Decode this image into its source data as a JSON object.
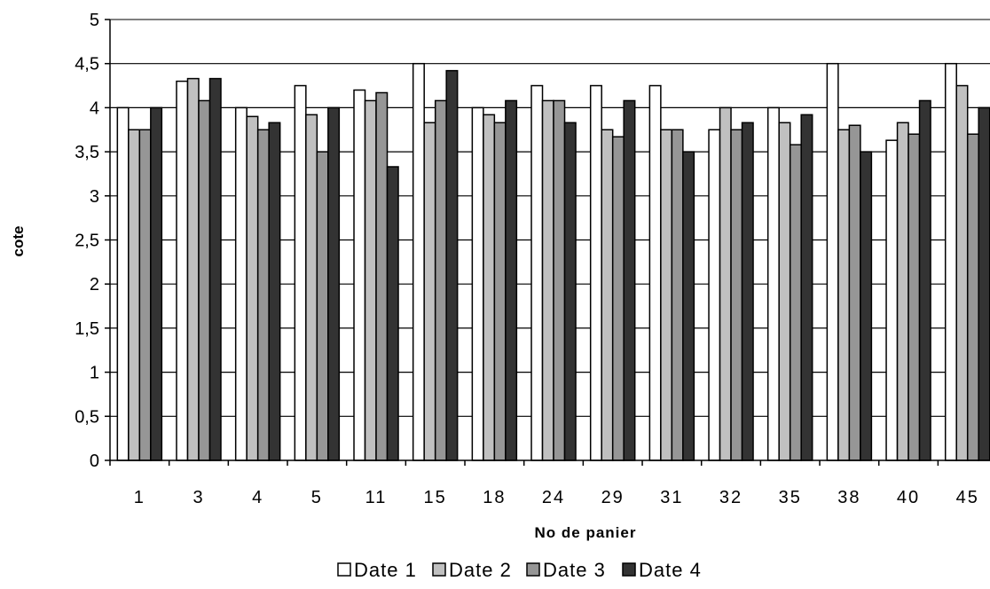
{
  "chart_data": {
    "type": "bar",
    "title": "",
    "xlabel": "No de panier",
    "ylabel": "cote",
    "ylim": [
      0,
      5
    ],
    "yticks": [
      "0",
      "0,5",
      "1",
      "1,5",
      "2",
      "2,5",
      "3",
      "3,5",
      "4",
      "4,5",
      "5"
    ],
    "grid": true,
    "legend_position": "bottom",
    "categories": [
      "1",
      "3",
      "4",
      "5",
      "11",
      "15",
      "18",
      "24",
      "29",
      "31",
      "32",
      "35",
      "38",
      "40",
      "45"
    ],
    "series": [
      {
        "name": "Date 1",
        "color": "#ffffff",
        "values": [
          4.0,
          4.3,
          4.0,
          4.25,
          4.2,
          4.5,
          4.0,
          4.25,
          4.25,
          4.25,
          3.75,
          4.0,
          4.5,
          3.63,
          4.5
        ]
      },
      {
        "name": "Date 2",
        "color": "#c0c0c0",
        "values": [
          3.75,
          4.33,
          3.9,
          3.92,
          4.08,
          3.83,
          3.92,
          4.08,
          3.75,
          3.75,
          4.0,
          3.83,
          3.75,
          3.83,
          4.25
        ]
      },
      {
        "name": "Date 3",
        "color": "#969696",
        "values": [
          3.75,
          4.08,
          3.75,
          3.5,
          4.17,
          4.08,
          3.83,
          4.08,
          3.67,
          3.75,
          3.75,
          3.58,
          3.8,
          3.7,
          3.7
        ]
      },
      {
        "name": "Date 4",
        "color": "#333333",
        "values": [
          4.0,
          4.33,
          3.83,
          4.0,
          3.33,
          4.42,
          4.08,
          3.83,
          4.08,
          3.5,
          3.83,
          3.92,
          3.5,
          4.08,
          4.0
        ]
      }
    ]
  }
}
